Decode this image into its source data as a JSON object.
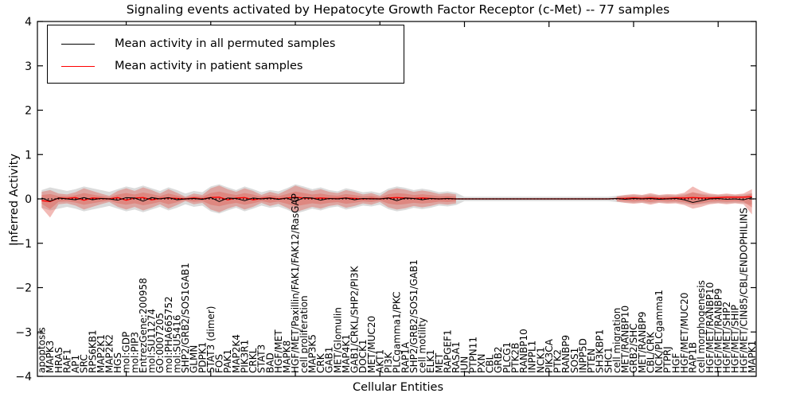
{
  "chart_data": {
    "type": "line",
    "title": "Signaling events activated by Hepatocyte Growth Factor Receptor (c-Met) -- 77 samples",
    "xlabel": "Cellular Entities",
    "ylabel": "Inferred Activity",
    "ylim": [
      -4,
      4
    ],
    "yticks": [
      4,
      3,
      2,
      1,
      0,
      -1,
      -2,
      -3,
      -4
    ],
    "ytick_labels": [
      "4",
      "3",
      "2",
      "1",
      "0",
      "−1",
      "−2",
      "−3",
      "−4"
    ],
    "x_major_tick_every": 10,
    "grid": false,
    "legend_position": "upper left",
    "legend": [
      {
        "label": "Mean activity in all permuted samples",
        "color": "#000000"
      },
      {
        "label": "Mean activity in patient samples",
        "color": "#ff0000"
      }
    ],
    "colors": {
      "permuted_line": "#000000",
      "patient_line": "#ff0000",
      "patient_band": "#e05a50",
      "permuted_band": "#b0b0b0",
      "zero_line": "#000000"
    },
    "categories": [
      "apoptosis",
      "MAPK3",
      "HRAS",
      "RAF1",
      "AP1",
      "SRC",
      "RPS6KB1",
      "MAP2K1",
      "MAP2K2",
      "HGS",
      "mol:GDP",
      "mol:PIP3",
      "EntrezGene:200958",
      "mol:SU11274",
      "GO:0007205",
      "mol:PHA665752",
      "mol:SU5416",
      "SHP2/GRB2/SOS1GAB1",
      "GLMN",
      "PDPK1",
      "STAT3 (dimer)",
      "FOS",
      "PAK1",
      "MAP2K4",
      "PIK3R1",
      "CRKL",
      "STAT3",
      "BAD",
      "HGF/MET",
      "MAPK8",
      "HGF/MET/Paxillin/FAK1/FAK12/RasGAP",
      "cell proliferation",
      "MAP3K5",
      "CRK",
      "GAB1",
      "MET/Glomulin",
      "MAP4K1",
      "GAB1/CRKL/SHP2/PI3K",
      "DOCK1",
      "MET/MUC20",
      "AKT1",
      "PI3K",
      "PLCgamma1/PKC",
      "RAP1A",
      "SHP2/GRB2/SOS1/GAB1",
      "cell motility",
      "ELK1",
      "MET",
      "RAPGEF1",
      "RASA1",
      "JUN",
      "PTPN11",
      "PXN",
      "CBL",
      "GRB2",
      "PLCG1",
      "PTK2B",
      "RANBP10",
      "INPPL1",
      "NCK1",
      "PIK3CA",
      "PTK2",
      "RANBP9",
      "SOS1",
      "INPP5D",
      "PTEN",
      "SH3KBP1",
      "SHC1",
      "cell migration",
      "MET/RANBP10",
      "GRB2/SHC",
      "MET/RANBP9",
      "CBL/CRK",
      "NCK/PLCgamma1",
      "PTPRJ",
      "HGF",
      "HGF/MET/MUC20",
      "RAP1B",
      "cell morphogenesis",
      "HGF/MET/RANBP10",
      "HGF/MET/RANBP9",
      "HGF/MET/SHP2",
      "HGF/MET/SHIP",
      "HGF/MET/CIN85/CBL/ENDOPHILINS",
      "MAPK1"
    ],
    "series": [
      {
        "name": "Mean activity in all permuted samples",
        "values": [
          0.02,
          -0.05,
          0.02,
          0.0,
          -0.02,
          0.03,
          -0.02,
          0.01,
          0.0,
          -0.03,
          0.03,
          0.02,
          -0.05,
          0.03,
          0.0,
          0.03,
          -0.02,
          0.0,
          0.01,
          -0.01,
          0.03,
          -0.06,
          0.02,
          0.01,
          -0.04,
          0.02,
          0.0,
          0.02,
          -0.01,
          0.02,
          -0.06,
          0.03,
          0.02,
          -0.03,
          0.01,
          0.0,
          0.02,
          -0.02,
          0.01,
          0.0,
          0.0,
          0.02,
          -0.04,
          0.02,
          0.01,
          -0.02,
          0.01,
          0.0,
          0.01,
          0.0,
          0,
          0,
          0,
          0,
          0,
          0,
          0,
          0,
          0,
          0,
          0,
          0,
          0,
          0,
          0,
          0,
          0,
          0,
          0.01,
          -0.01,
          0.01,
          0.0,
          0.01,
          -0.01,
          0.0,
          0.01,
          -0.02,
          -0.08,
          -0.04,
          0.0,
          0.01,
          -0.01,
          0.0,
          -0.02,
          0.03
        ]
      },
      {
        "name": "Mean activity in patient samples",
        "values": [
          -0.04,
          -0.06,
          0.02,
          0.01,
          0.03,
          -0.03,
          0.02,
          0.01,
          0.0,
          0.03,
          -0.03,
          0.02,
          0.03,
          -0.02,
          0.01,
          0.02,
          0.01,
          0.0,
          0.02,
          0.0,
          0.03,
          0.04,
          -0.02,
          0.02,
          0.03,
          -0.02,
          0.01,
          0.02,
          0.0,
          0.02,
          0.04,
          0.02,
          0.01,
          0.02,
          0.01,
          0.01,
          0.02,
          0.01,
          0.0,
          0.01,
          0.0,
          0.02,
          0.03,
          0.02,
          0.01,
          0.02,
          0.01,
          0.0,
          0.01,
          0.0,
          0,
          0,
          0,
          0,
          0,
          0,
          0,
          0,
          0,
          0,
          0,
          0,
          0,
          0,
          0,
          0,
          0,
          0,
          0.01,
          0.01,
          0.02,
          0.01,
          0.02,
          0.01,
          0.01,
          0.02,
          0.02,
          0.03,
          0.02,
          0.02,
          0.03,
          0.04,
          0.04,
          0.04,
          0.05
        ]
      }
    ],
    "patient_band_upper": [
      0.16,
      0.2,
      0.12,
      0.1,
      0.15,
      0.24,
      0.18,
      0.12,
      0.07,
      0.18,
      0.24,
      0.18,
      0.26,
      0.2,
      0.12,
      0.22,
      0.14,
      0.05,
      0.12,
      0.09,
      0.24,
      0.3,
      0.22,
      0.16,
      0.24,
      0.18,
      0.09,
      0.16,
      0.11,
      0.2,
      0.3,
      0.24,
      0.18,
      0.22,
      0.16,
      0.13,
      0.2,
      0.16,
      0.1,
      0.13,
      0.07,
      0.19,
      0.24,
      0.21,
      0.16,
      0.19,
      0.16,
      0.11,
      0.13,
      0.1,
      0,
      0,
      0,
      0,
      0,
      0,
      0,
      0,
      0,
      0,
      0,
      0,
      0,
      0,
      0,
      0,
      0,
      0,
      0.06,
      0.09,
      0.11,
      0.09,
      0.13,
      0.09,
      0.11,
      0.1,
      0.14,
      0.28,
      0.18,
      0.12,
      0.1,
      0.12,
      0.1,
      0.12,
      0.22
    ],
    "patient_band_lower": [
      -0.2,
      -0.42,
      -0.12,
      -0.1,
      -0.15,
      -0.24,
      -0.18,
      -0.12,
      -0.07,
      -0.18,
      -0.24,
      -0.18,
      -0.26,
      -0.2,
      -0.12,
      -0.22,
      -0.14,
      -0.05,
      -0.12,
      -0.09,
      -0.24,
      -0.3,
      -0.22,
      -0.16,
      -0.24,
      -0.18,
      -0.09,
      -0.16,
      -0.11,
      -0.2,
      -0.3,
      -0.24,
      -0.18,
      -0.22,
      -0.16,
      -0.13,
      -0.2,
      -0.16,
      -0.1,
      -0.13,
      -0.07,
      -0.19,
      -0.24,
      -0.21,
      -0.16,
      -0.19,
      -0.16,
      -0.11,
      -0.13,
      -0.1,
      0,
      0,
      0,
      0,
      0,
      0,
      0,
      0,
      0,
      0,
      0,
      0,
      0,
      0,
      0,
      0,
      0,
      0,
      -0.06,
      -0.09,
      -0.11,
      -0.09,
      -0.13,
      -0.09,
      -0.11,
      -0.1,
      -0.14,
      -0.22,
      -0.18,
      -0.12,
      -0.1,
      -0.12,
      -0.1,
      -0.12,
      -0.35
    ],
    "permuted_band_halfwidth": [
      0.2,
      0.26,
      0.22,
      0.18,
      0.22,
      0.28,
      0.24,
      0.2,
      0.16,
      0.22,
      0.28,
      0.24,
      0.3,
      0.24,
      0.18,
      0.26,
      0.2,
      0.12,
      0.18,
      0.15,
      0.28,
      0.33,
      0.26,
      0.2,
      0.28,
      0.22,
      0.15,
      0.2,
      0.17,
      0.24,
      0.33,
      0.28,
      0.22,
      0.26,
      0.2,
      0.17,
      0.24,
      0.2,
      0.15,
      0.17,
      0.13,
      0.23,
      0.28,
      0.25,
      0.2,
      0.23,
      0.2,
      0.15,
      0.17,
      0.14,
      0.05,
      0.05,
      0.05,
      0.05,
      0.05,
      0.05,
      0.05,
      0.05,
      0.05,
      0.05,
      0.05,
      0.05,
      0.05,
      0.05,
      0.05,
      0.05,
      0.05,
      0.05,
      0.07,
      0.08,
      0.09,
      0.08,
      0.1,
      0.08,
      0.09,
      0.08,
      0.11,
      0.14,
      0.12,
      0.1,
      0.09,
      0.1,
      0.09,
      0.1,
      0.13
    ]
  }
}
